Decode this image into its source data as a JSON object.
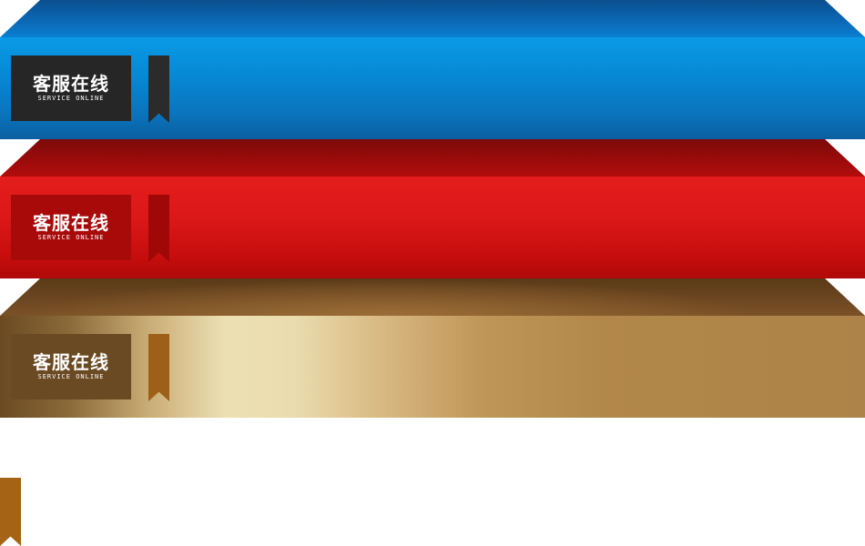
{
  "banners": [
    {
      "id": "blue",
      "badge_title": "客服在线",
      "badge_subtitle": "SERVICE ONLINE",
      "colors": {
        "front": "#078ad6",
        "top": "#0b67b4",
        "badge": "#262626",
        "ribbon": "#2b2b2b"
      }
    },
    {
      "id": "red",
      "badge_title": "客服在线",
      "badge_subtitle": "SERVICE ONLINE",
      "colors": {
        "front": "#dc1818",
        "top": "#9b0b0b",
        "badge": "#a80a0a",
        "ribbon": "#a00808"
      }
    },
    {
      "id": "gold",
      "badge_title": "客服在线",
      "badge_subtitle": "SERVICE ONLINE",
      "colors": {
        "front": "#bf9558",
        "top": "#6c4620",
        "badge": "#6a4a22",
        "ribbon": "#9e6018"
      }
    }
  ],
  "standalone_ribbon": {
    "icon": "bookmark-ribbon-icon",
    "color": "#a46315"
  }
}
